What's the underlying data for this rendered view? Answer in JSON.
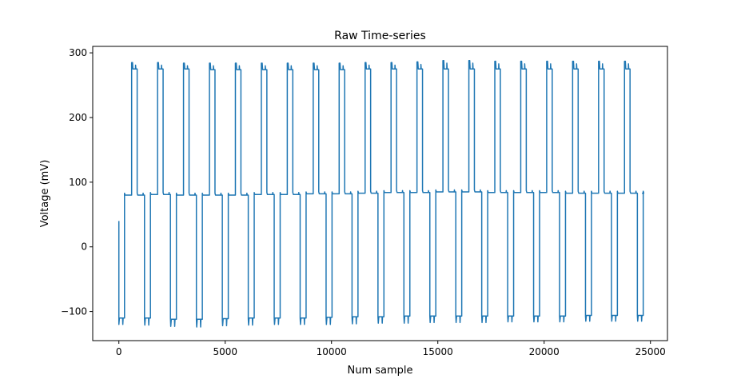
{
  "chart_data": {
    "type": "line",
    "title": "Raw Time-series",
    "xlabel": "Num sample",
    "ylabel": "Voltage (mV)",
    "xlim": [
      -1230,
      25800
    ],
    "ylim": [
      -145,
      310
    ],
    "xticks": [
      0,
      5000,
      10000,
      15000,
      20000,
      25000
    ],
    "xtick_labels": [
      "0",
      "5000",
      "10000",
      "15000",
      "20000",
      "25000"
    ],
    "yticks": [
      -100,
      0,
      100,
      200,
      300
    ],
    "ytick_labels": [
      "−100",
      "0",
      "100",
      "200",
      "300"
    ],
    "grid": false,
    "legend": "none",
    "line_color": "#1f77b4",
    "series": [
      {
        "x_start": 0,
        "x_end": 24600,
        "initial_value": 40,
        "pattern": "repeating square-wave cycle: low level, high level, mid level",
        "cycle_length_samples": 1220,
        "cycle_start_samples": [
          0,
          1220,
          2440,
          3660,
          4880,
          6100,
          7320,
          8540,
          9760,
          10980,
          12200,
          13420,
          14640,
          15860,
          17080,
          18300,
          19520,
          20740,
          21960,
          23180,
          24400
        ],
        "low_level": [
          -110,
          -110,
          -112,
          -112,
          -111,
          -110,
          -110,
          -110,
          -109,
          -108,
          -108,
          -107,
          -107,
          -107,
          -107,
          -107,
          -107,
          -107,
          -106,
          -106,
          -106
        ],
        "low_spike": [
          -120,
          -121,
          -123,
          -124,
          -122,
          -121,
          -120,
          -120,
          -120,
          -119,
          -118,
          -118,
          -117,
          -117,
          -117,
          -116,
          -116,
          -116,
          -115,
          -115,
          -115
        ],
        "high_level": [
          275,
          275,
          275,
          274,
          274,
          274,
          274,
          274,
          274,
          275,
          275,
          275,
          275,
          275,
          275,
          275,
          275,
          275,
          275,
          275,
          null
        ],
        "high_spike": [
          285,
          285,
          284,
          284,
          284,
          284,
          284,
          284,
          284,
          285,
          285,
          286,
          288,
          288,
          287,
          287,
          287,
          287,
          287,
          287,
          null
        ],
        "mid_level": [
          80,
          81,
          80,
          80,
          80,
          81,
          81,
          82,
          82,
          83,
          84,
          84,
          85,
          85,
          84,
          84,
          84,
          83,
          83,
          83,
          83
        ],
        "mid_spike": [
          83,
          84,
          83,
          83,
          83,
          84,
          84,
          85,
          85,
          86,
          87,
          87,
          88,
          88,
          87,
          87,
          87,
          86,
          86,
          86,
          86
        ]
      }
    ]
  }
}
